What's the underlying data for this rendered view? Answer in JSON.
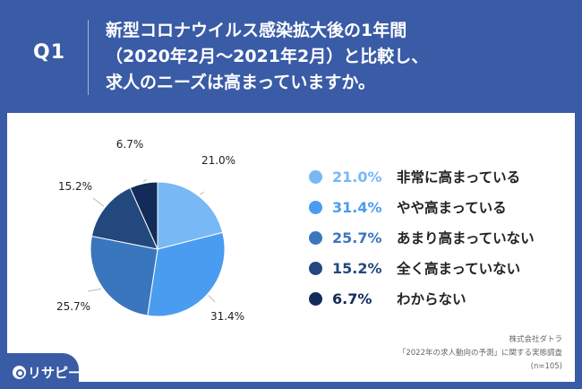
{
  "header": {
    "q_label": "Q1",
    "question_lines": [
      "新型コロナウイルス感染拡大後の1年間",
      "（2020年2月〜2021年2月）と比較し、",
      "求人のニーズは高まっていますか。"
    ]
  },
  "chart_data": {
    "type": "pie",
    "categories": [
      "非常に高まっている",
      "やや高まっている",
      "あまり高まっていない",
      "全く高まっていない",
      "わからない"
    ],
    "values": [
      21.0,
      31.4,
      25.7,
      15.2,
      6.7
    ],
    "value_labels": [
      "21.0%",
      "31.4%",
      "25.7%",
      "15.2%",
      "6.7%"
    ],
    "colors": [
      "#77b8f5",
      "#4a9cf0",
      "#3a76be",
      "#22487d",
      "#132b58"
    ],
    "legend_position": "right",
    "start": "12 o'clock, clockwise"
  },
  "legend_text_color": "#222222",
  "source": {
    "lines": [
      "株式会社ダトラ",
      "「2022年の求人動向の予測」に関する実態調査",
      "(n=105)"
    ]
  },
  "logo": {
    "text": "リサピー"
  },
  "colors": {
    "background": "#3a5ba6",
    "card": "#ffffff"
  }
}
